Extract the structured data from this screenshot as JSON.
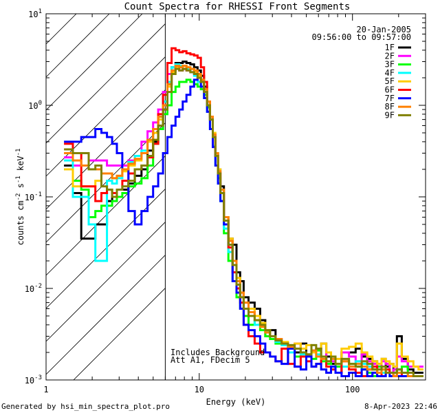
{
  "chart_data": {
    "type": "line",
    "title": "Count Spectra for RHESSI Front Segments",
    "xlabel": "Energy (keV)",
    "ylabel_parts": [
      "counts cm",
      "-2",
      " s",
      "-1",
      " keV",
      "-1"
    ],
    "x_scale": "log",
    "y_scale": "log",
    "xlim": [
      1,
      300
    ],
    "ylim": [
      0.001,
      10
    ],
    "x_ticks": [
      {
        "value": 1,
        "label": "1"
      },
      {
        "value": 10,
        "label": "10"
      },
      {
        "value": 100,
        "label": "100"
      }
    ],
    "y_ticks": [
      {
        "value": 0.001,
        "base": "10",
        "exp": "-3"
      },
      {
        "value": 0.01,
        "base": "10",
        "exp": "-2"
      },
      {
        "value": 0.1,
        "base": "10",
        "exp": "-1"
      },
      {
        "value": 1,
        "base": "10",
        "exp": "0"
      },
      {
        "value": 10,
        "base": "10",
        "exp": "1"
      }
    ],
    "shaded_region": {
      "x_from": 1,
      "x_to": 6
    },
    "date_label": "20-Jan-2005",
    "time_label": "09:56:00 to 09:57:00",
    "notes": [
      "Includes Background",
      "Att A1, FDecim  5"
    ],
    "x": [
      1.4,
      1.6,
      1.8,
      2.0,
      2.2,
      2.4,
      2.6,
      2.8,
      3.0,
      3.3,
      3.6,
      4.0,
      4.4,
      4.8,
      5.2,
      5.6,
      6.0,
      6.4,
      6.8,
      7.2,
      7.6,
      8.0,
      8.5,
      9.0,
      9.5,
      10.0,
      10.5,
      11.0,
      11.5,
      12.0,
      12.5,
      13.0,
      13.5,
      14.0,
      15.0,
      16.0,
      17.0,
      18.0,
      19.0,
      20.0,
      22.0,
      24.0,
      26.0,
      28.0,
      30.0,
      33.0,
      36.0,
      40.0,
      44.0,
      48.0,
      52.0,
      56.0,
      60.0,
      65.0,
      70.0,
      75.0,
      80.0,
      90.0,
      100.0,
      110.0,
      120.0,
      130.0,
      140.0,
      150.0,
      160.0,
      170.0,
      180.0,
      190.0,
      200.0,
      220.0,
      240.0,
      260.0,
      280.0
    ],
    "series": [
      {
        "name": "1F",
        "color": "#000000",
        "values": [
          0.22,
          0.11,
          0.035,
          0.035,
          0.05,
          0.05,
          0.09,
          0.1,
          0.12,
          0.12,
          0.14,
          0.17,
          0.2,
          0.32,
          0.4,
          0.55,
          0.9,
          1.7,
          2.6,
          2.9,
          2.9,
          3.0,
          2.9,
          2.8,
          2.6,
          2.4,
          2.1,
          1.6,
          1.1,
          0.75,
          0.48,
          0.3,
          0.2,
          0.13,
          0.06,
          0.035,
          0.03,
          0.015,
          0.012,
          0.008,
          0.007,
          0.006,
          0.0045,
          0.003,
          0.0035,
          0.0028,
          0.0025,
          0.0022,
          0.002,
          0.0025,
          0.0018,
          0.002,
          0.0022,
          0.0025,
          0.0018,
          0.0015,
          0.0012,
          0.002,
          0.002,
          0.0022,
          0.0018,
          0.0017,
          0.0016,
          0.0015,
          0.0017,
          0.0014,
          0.0015,
          0.0012,
          0.003,
          0.0017,
          0.0013,
          0.0012,
          0.0012
        ]
      },
      {
        "name": "2F",
        "color": "#ff00ff",
        "values": [
          0.27,
          0.22,
          0.22,
          0.25,
          0.25,
          0.25,
          0.22,
          0.22,
          0.22,
          0.22,
          0.25,
          0.28,
          0.4,
          0.52,
          0.65,
          0.9,
          1.4,
          2.2,
          2.4,
          2.6,
          2.4,
          2.5,
          2.4,
          2.3,
          2.2,
          2.0,
          1.8,
          1.4,
          1.0,
          0.7,
          0.45,
          0.28,
          0.18,
          0.11,
          0.055,
          0.03,
          0.02,
          0.012,
          0.009,
          0.007,
          0.006,
          0.005,
          0.004,
          0.0035,
          0.003,
          0.0028,
          0.0025,
          0.0022,
          0.0025,
          0.002,
          0.0019,
          0.002,
          0.0022,
          0.0018,
          0.002,
          0.0016,
          0.0015,
          0.002,
          0.0018,
          0.0016,
          0.0019,
          0.0016,
          0.0015,
          0.0014,
          0.0016,
          0.0015,
          0.0012,
          0.0013,
          0.0018,
          0.0016,
          0.0014,
          0.0014,
          0.0014
        ]
      },
      {
        "name": "3F",
        "color": "#00ff00",
        "values": [
          0.2,
          0.15,
          0.12,
          0.06,
          0.07,
          0.08,
          0.08,
          0.09,
          0.1,
          0.11,
          0.13,
          0.14,
          0.16,
          0.22,
          0.38,
          0.55,
          0.8,
          1.0,
          1.4,
          1.6,
          1.8,
          1.8,
          1.9,
          1.8,
          1.7,
          1.6,
          1.5,
          1.3,
          0.95,
          0.7,
          0.45,
          0.28,
          0.16,
          0.09,
          0.04,
          0.02,
          0.012,
          0.008,
          0.006,
          0.005,
          0.004,
          0.0045,
          0.0035,
          0.003,
          0.0028,
          0.0025,
          0.0025,
          0.0022,
          0.0018,
          0.002,
          0.0019,
          0.0017,
          0.0021,
          0.0016,
          0.0015,
          0.0018,
          0.0014,
          0.0016,
          0.0015,
          0.0014,
          0.0013,
          0.0012,
          0.0011,
          0.0014,
          0.0013,
          0.0012,
          0.0012,
          0.0011,
          0.0013,
          0.0014,
          0.0011,
          0.0011,
          0.0011
        ]
      },
      {
        "name": "4F",
        "color": "#00ffff",
        "values": [
          0.25,
          0.1,
          0.1,
          0.05,
          0.02,
          0.02,
          0.15,
          0.14,
          0.16,
          0.2,
          0.24,
          0.28,
          0.32,
          0.42,
          0.55,
          0.75,
          1.1,
          1.8,
          2.6,
          2.8,
          2.7,
          2.7,
          2.5,
          2.3,
          2.1,
          1.8,
          1.6,
          1.2,
          0.85,
          0.55,
          0.36,
          0.22,
          0.14,
          0.09,
          0.045,
          0.025,
          0.015,
          0.011,
          0.008,
          0.006,
          0.005,
          0.004,
          0.0038,
          0.0034,
          0.003,
          0.0026,
          0.0024,
          0.002,
          0.0022,
          0.0019,
          0.0018,
          0.0021,
          0.0019,
          0.0017,
          0.0016,
          0.0017,
          0.0015,
          0.0014,
          0.0015,
          0.0016,
          0.0015,
          0.0014,
          0.0013,
          0.0012,
          0.0012,
          0.0013,
          0.0011,
          0.0011,
          0.0012,
          0.0012,
          0.0011,
          0.0011,
          0.0011
        ]
      },
      {
        "name": "5F",
        "color": "#ffcc00",
        "values": [
          0.2,
          0.13,
          0.13,
          0.13,
          0.15,
          0.18,
          0.18,
          0.16,
          0.17,
          0.19,
          0.22,
          0.25,
          0.3,
          0.4,
          0.5,
          0.7,
          1.0,
          1.6,
          2.3,
          2.6,
          2.6,
          2.7,
          2.6,
          2.5,
          2.3,
          2.1,
          1.9,
          1.5,
          1.1,
          0.75,
          0.5,
          0.3,
          0.2,
          0.12,
          0.06,
          0.035,
          0.02,
          0.013,
          0.009,
          0.007,
          0.006,
          0.005,
          0.0042,
          0.0035,
          0.003,
          0.0028,
          0.0026,
          0.0024,
          0.0025,
          0.0022,
          0.0024,
          0.002,
          0.0022,
          0.0025,
          0.002,
          0.0018,
          0.0017,
          0.0022,
          0.0023,
          0.0025,
          0.002,
          0.0018,
          0.0016,
          0.0015,
          0.0017,
          0.0016,
          0.0015,
          0.0014,
          0.0025,
          0.0018,
          0.0016,
          0.0014,
          0.0013
        ]
      },
      {
        "name": "6F",
        "color": "#ff0000",
        "values": [
          0.38,
          0.3,
          0.13,
          0.13,
          0.09,
          0.11,
          0.12,
          0.11,
          0.12,
          0.15,
          0.18,
          0.2,
          0.22,
          0.27,
          0.38,
          0.8,
          1.3,
          2.9,
          4.2,
          4.0,
          3.8,
          3.9,
          3.7,
          3.6,
          3.5,
          3.3,
          2.6,
          1.8,
          1.1,
          0.7,
          0.45,
          0.28,
          0.18,
          0.11,
          0.055,
          0.028,
          0.015,
          0.01,
          0.007,
          0.004,
          0.003,
          0.0025,
          0.002,
          0.002,
          0.0018,
          0.0016,
          0.0022,
          0.0015,
          0.0014,
          0.0018,
          0.0016,
          0.0014,
          0.0015,
          0.0018,
          0.0014,
          0.0013,
          0.0012,
          0.0016,
          0.0013,
          0.0012,
          0.0011,
          0.0013,
          0.0014,
          0.0012,
          0.0011,
          0.0013,
          0.0012,
          0.0011,
          0.0012,
          0.0011,
          0.0011,
          0.0011,
          0.0011
        ]
      },
      {
        "name": "7F",
        "color": "#0000ff",
        "values": [
          0.4,
          0.4,
          0.45,
          0.45,
          0.55,
          0.5,
          0.45,
          0.38,
          0.3,
          0.2,
          0.07,
          0.05,
          0.07,
          0.1,
          0.13,
          0.18,
          0.3,
          0.45,
          0.6,
          0.75,
          0.9,
          1.1,
          1.3,
          1.6,
          1.9,
          2.0,
          1.6,
          1.2,
          0.85,
          0.55,
          0.35,
          0.22,
          0.14,
          0.09,
          0.05,
          0.03,
          0.012,
          0.009,
          0.006,
          0.004,
          0.0035,
          0.003,
          0.0025,
          0.002,
          0.0018,
          0.0016,
          0.0015,
          0.0022,
          0.0014,
          0.0013,
          0.0018,
          0.0014,
          0.0015,
          0.0013,
          0.0012,
          0.0014,
          0.0012,
          0.0011,
          0.0012,
          0.0011,
          0.0013,
          0.0011,
          0.0012,
          0.0011,
          0.0011,
          0.0012,
          0.0011,
          0.0011,
          0.0011,
          0.0011,
          0.0011,
          0.0011,
          0.0011
        ]
      },
      {
        "name": "8F",
        "color": "#ff8000",
        "values": [
          0.3,
          0.25,
          0.22,
          0.2,
          0.2,
          0.18,
          0.18,
          0.16,
          0.17,
          0.2,
          0.23,
          0.26,
          0.3,
          0.42,
          0.55,
          0.75,
          1.0,
          1.7,
          2.4,
          2.7,
          2.6,
          2.7,
          2.6,
          2.5,
          2.4,
          2.2,
          1.9,
          1.5,
          1.1,
          0.75,
          0.48,
          0.3,
          0.19,
          0.12,
          0.06,
          0.033,
          0.02,
          0.012,
          0.009,
          0.007,
          0.0055,
          0.0045,
          0.0038,
          0.0033,
          0.003,
          0.0028,
          0.0025,
          0.0023,
          0.0022,
          0.002,
          0.0019,
          0.0021,
          0.0018,
          0.0017,
          0.0016,
          0.0017,
          0.0015,
          0.0016,
          0.0014,
          0.0015,
          0.0014,
          0.0013,
          0.0013,
          0.0012,
          0.0013,
          0.0012,
          0.0012,
          0.0011,
          0.0012,
          0.0012,
          0.0011,
          0.0011,
          0.0011
        ]
      },
      {
        "name": "9F",
        "color": "#808000",
        "values": [
          0.33,
          0.3,
          0.3,
          0.2,
          0.22,
          0.13,
          0.12,
          0.1,
          0.12,
          0.13,
          0.15,
          0.2,
          0.22,
          0.28,
          0.42,
          0.6,
          0.9,
          1.4,
          2.2,
          2.5,
          2.4,
          2.5,
          2.4,
          2.3,
          2.2,
          2.0,
          1.8,
          1.4,
          1.0,
          0.7,
          0.45,
          0.28,
          0.18,
          0.11,
          0.055,
          0.03,
          0.018,
          0.011,
          0.008,
          0.006,
          0.005,
          0.0045,
          0.004,
          0.0035,
          0.003,
          0.0027,
          0.0025,
          0.0024,
          0.0022,
          0.002,
          0.0019,
          0.0024,
          0.0022,
          0.0018,
          0.0016,
          0.0018,
          0.0015,
          0.0017,
          0.0015,
          0.0014,
          0.0016,
          0.0015,
          0.0013,
          0.0013,
          0.0014,
          0.0012,
          0.0012,
          0.0012,
          0.0013,
          0.0012,
          0.0012,
          0.0011,
          0.0011
        ]
      }
    ]
  },
  "footer": {
    "generated_by": "Generated by hsi_min_spectra_plot.pro",
    "timestamp": "8-Apr-2023 22:46"
  }
}
